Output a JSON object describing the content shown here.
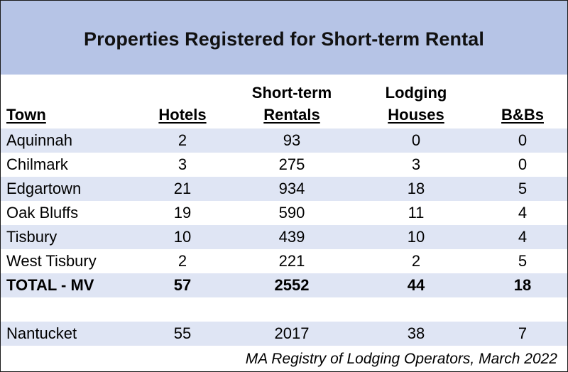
{
  "title": "Properties Registered for Short-term Rental",
  "headers": {
    "town": "Town",
    "hotels": "Hotels",
    "str_line1": "Short-term",
    "str_line2": "Rentals",
    "lodging_line1": "Lodging",
    "lodging_line2": "Houses",
    "bnb": "B&Bs"
  },
  "rows": [
    {
      "town": "Aquinnah",
      "hotels": "2",
      "str": "93",
      "lodging": "0",
      "bnb": "0"
    },
    {
      "town": "Chilmark",
      "hotels": "3",
      "str": "275",
      "lodging": "3",
      "bnb": "0"
    },
    {
      "town": "Edgartown",
      "hotels": "21",
      "str": "934",
      "lodging": "18",
      "bnb": "5"
    },
    {
      "town": "Oak Bluffs",
      "hotels": "19",
      "str": "590",
      "lodging": "11",
      "bnb": "4"
    },
    {
      "town": "Tisbury",
      "hotels": "10",
      "str": "439",
      "lodging": "10",
      "bnb": "4"
    },
    {
      "town": "West Tisbury",
      "hotels": "2",
      "str": "221",
      "lodging": "2",
      "bnb": "5"
    }
  ],
  "total": {
    "town": "TOTAL - MV",
    "hotels": "57",
    "str": "2552",
    "lodging": "44",
    "bnb": "18"
  },
  "nantucket": {
    "town": "Nantucket",
    "hotels": "55",
    "str": "2017",
    "lodging": "38",
    "bnb": "7"
  },
  "source": "MA Registry of Lodging Operators, March 2022",
  "colors": {
    "title_band": "#b6c4e6",
    "stripe": "#dfe5f4"
  }
}
